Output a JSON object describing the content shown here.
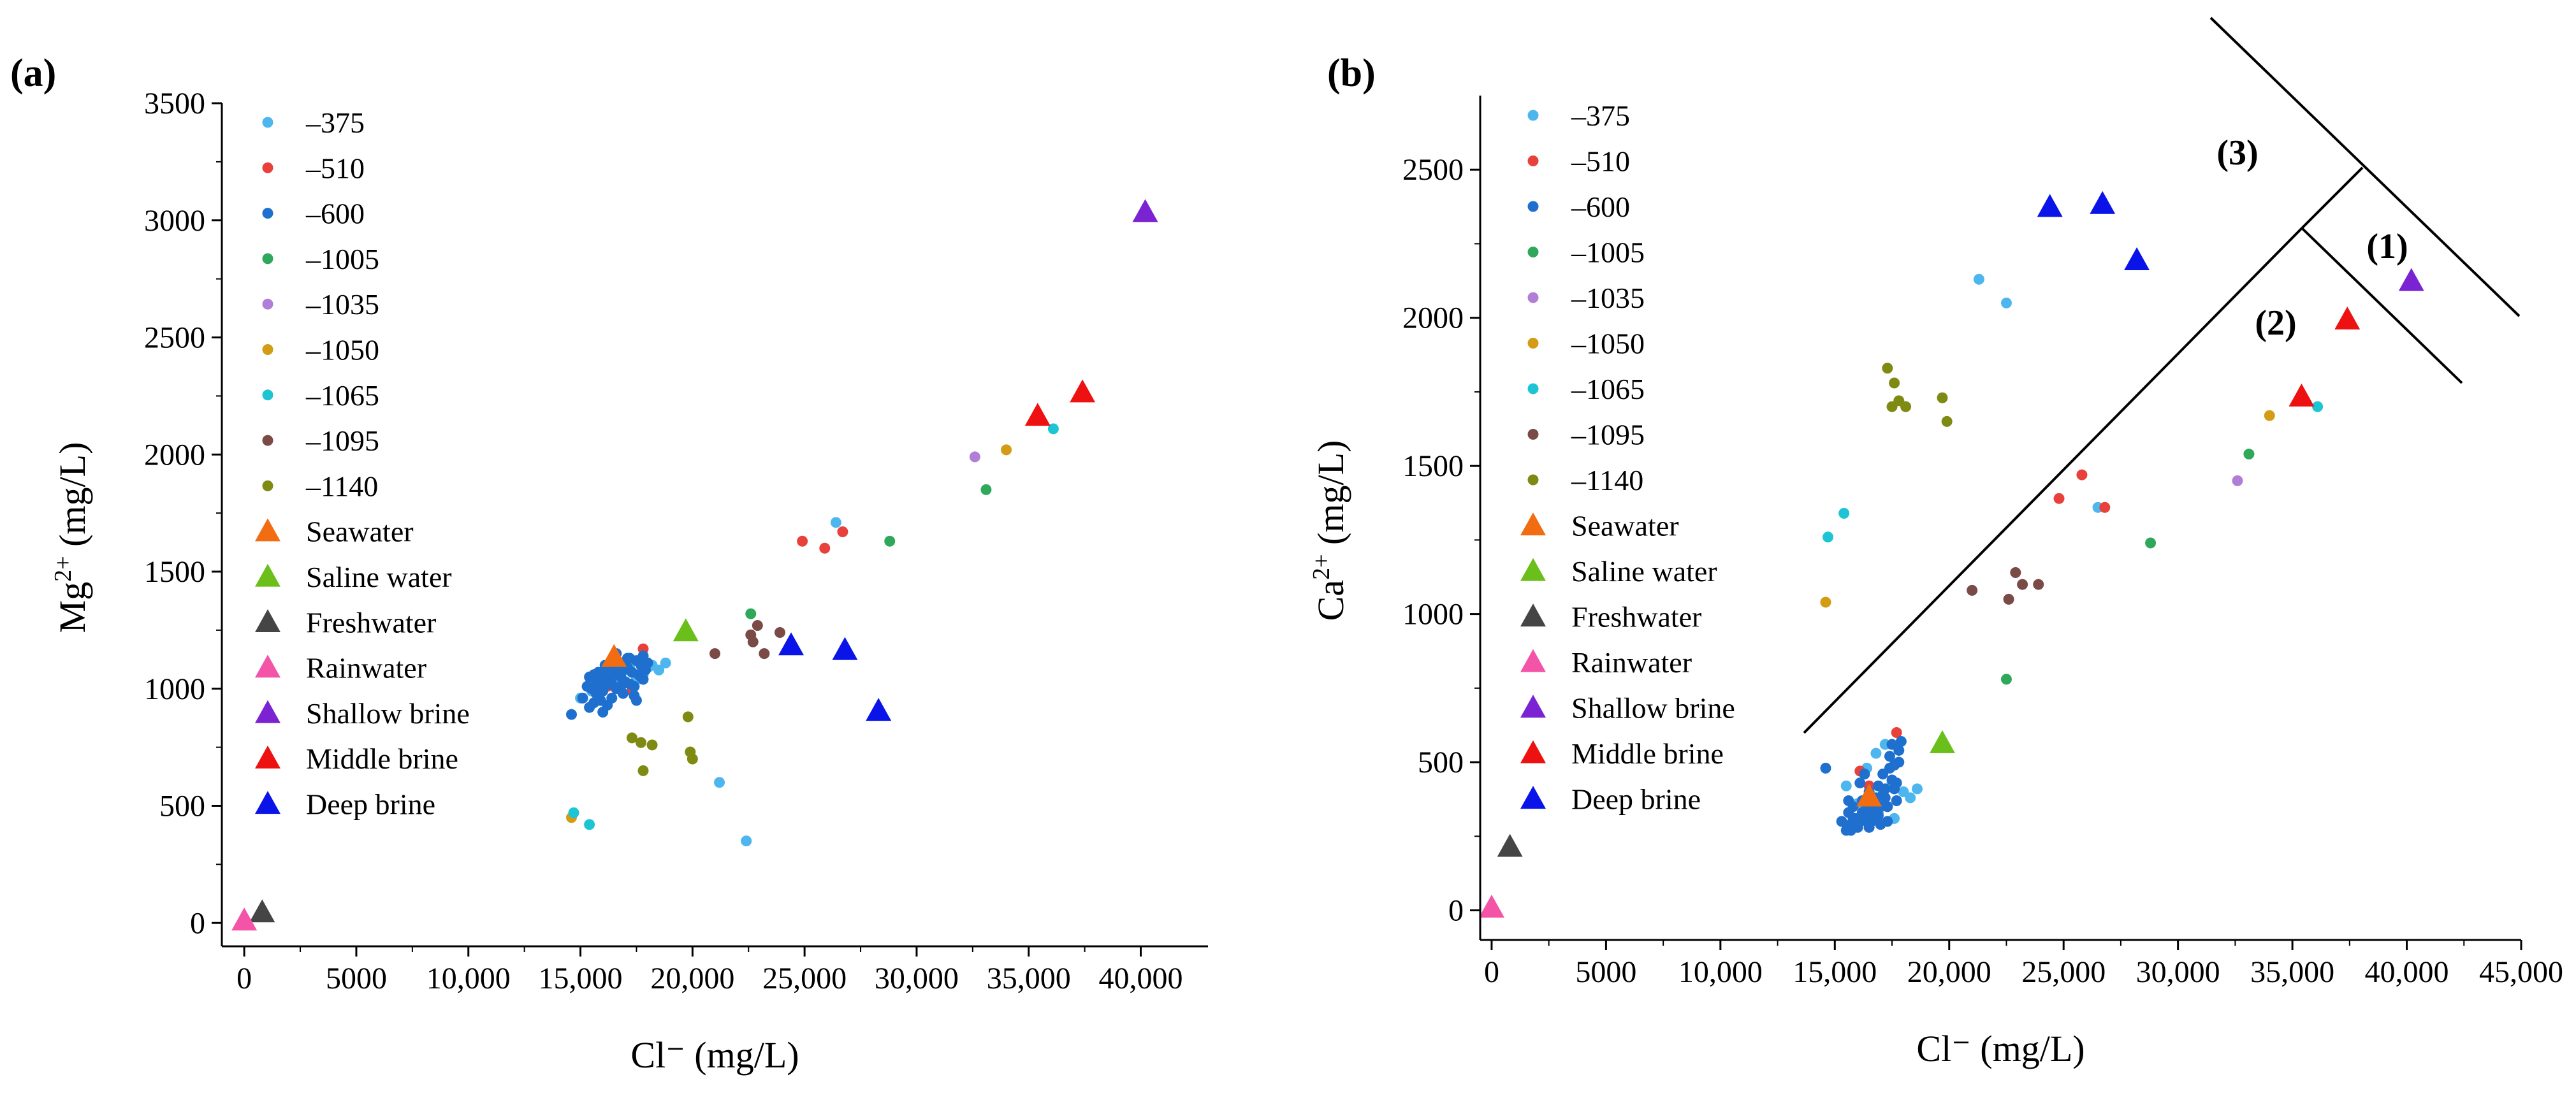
{
  "figure": {
    "panel_a_label": "(a)",
    "panel_b_label": "(b)"
  },
  "chart_data": [
    {
      "id": "a",
      "type": "scatter",
      "title": "",
      "xlabel": "Cl⁻ (mg/L)",
      "ylabel": "Mg²⁺ (mg/L)",
      "ylabel_base": "Mg",
      "ylabel_sup": "2+",
      "xlim": [
        -1000,
        43000
      ],
      "ylim": [
        -100,
        3500
      ],
      "xticks": [
        0,
        5000,
        10000,
        15000,
        20000,
        25000,
        30000,
        35000,
        40000
      ],
      "xtick_labels": [
        "0",
        "5000",
        "10,000",
        "15,000",
        "20,000",
        "25,000",
        "30,000",
        "35,000",
        "40,000"
      ],
      "yticks": [
        0,
        500,
        1000,
        1500,
        2000,
        2500,
        3000,
        3500
      ],
      "ytick_labels": [
        "0",
        "500",
        "1000",
        "1500",
        "2000",
        "2500",
        "3000",
        "3500"
      ],
      "legend_position": "top-left",
      "series": [
        {
          "name": "–375",
          "marker": "circle",
          "color": "#4db6ee",
          "x": [
            15000,
            15500,
            16000,
            16500,
            16800,
            17000,
            17200,
            17500,
            17800,
            18000,
            18200,
            18500,
            18800,
            21200,
            22400,
            26400
          ],
          "y": [
            960,
            990,
            1000,
            1020,
            1060,
            1080,
            1100,
            1040,
            1060,
            1090,
            1100,
            1080,
            1110,
            600,
            350,
            1710
          ]
        },
        {
          "name": "–510",
          "marker": "circle",
          "color": "#e8413c",
          "x": [
            16200,
            17300,
            17800,
            24900,
            25900,
            26700
          ],
          "y": [
            1010,
            990,
            1170,
            1630,
            1600,
            1670
          ]
        },
        {
          "name": "–600",
          "marker": "circle",
          "color": "#1e6fce",
          "x": [
            14600,
            15100,
            15300,
            15400,
            15500,
            15600,
            15700,
            15800,
            15900,
            16000,
            16100,
            16200,
            16300,
            16400,
            16500,
            16600,
            16700,
            16800,
            16900,
            17000,
            17100,
            17200,
            17300,
            17400,
            17500,
            17600,
            17700,
            17800,
            17900,
            18000,
            15400,
            15700,
            16000,
            16300,
            16600,
            16900,
            17200,
            17500,
            17800,
            15600,
            15900,
            16200,
            16500,
            16800,
            17100,
            17400,
            17700,
            15800,
            16100,
            16400
          ],
          "y": [
            890,
            960,
            1010,
            1050,
            1000,
            940,
            1020,
            1070,
            950,
            990,
            1040,
            1080,
            1020,
            960,
            1060,
            1000,
            1110,
            1050,
            980,
            1030,
            1090,
            1130,
            1070,
            1010,
            1120,
            1060,
            1100,
            1040,
            1080,
            1110,
            920,
            980,
            900,
            1030,
            1150,
            1080,
            1020,
            950,
            1140,
            1060,
            1000,
            930,
            1090,
            1010,
            1130,
            970,
            1050,
            1040,
            1100,
            1020
          ]
        },
        {
          "name": "–1005",
          "marker": "circle",
          "color": "#2fa85c",
          "x": [
            22600,
            28800,
            33100
          ],
          "y": [
            1320,
            1630,
            1850
          ]
        },
        {
          "name": "–1035",
          "marker": "circle",
          "color": "#b07ed6",
          "x": [
            32600
          ],
          "y": [
            1990
          ]
        },
        {
          "name": "–1050",
          "marker": "circle",
          "color": "#d39c14",
          "x": [
            14600,
            34000
          ],
          "y": [
            450,
            2020
          ]
        },
        {
          "name": "–1065",
          "marker": "circle",
          "color": "#1cc4d4",
          "x": [
            14700,
            15400,
            36100
          ],
          "y": [
            470,
            420,
            2110
          ]
        },
        {
          "name": "–1095",
          "marker": "circle",
          "color": "#7a4a46",
          "x": [
            21000,
            22600,
            22900,
            23200,
            23900,
            22700
          ],
          "y": [
            1150,
            1230,
            1270,
            1150,
            1240,
            1200
          ]
        },
        {
          "name": "–1140",
          "marker": "circle",
          "color": "#7e8a12",
          "x": [
            17300,
            17700,
            18200,
            17800,
            19800,
            19900,
            20000
          ],
          "y": [
            790,
            770,
            760,
            650,
            880,
            730,
            700
          ]
        },
        {
          "name": "Seawater",
          "marker": "triangle",
          "color": "#f26d12",
          "x": [
            16500
          ],
          "y": [
            1130
          ]
        },
        {
          "name": "Saline water",
          "marker": "triangle",
          "color": "#6bbf1a",
          "x": [
            19700
          ],
          "y": [
            1240
          ]
        },
        {
          "name": "Freshwater",
          "marker": "triangle",
          "color": "#454545",
          "x": [
            800
          ],
          "y": [
            40
          ]
        },
        {
          "name": "Rainwater",
          "marker": "triangle",
          "color": "#f454a8",
          "x": [
            0
          ],
          "y": [
            5
          ]
        },
        {
          "name": "Shallow brine",
          "marker": "triangle",
          "color": "#7b22d2",
          "x": [
            40200
          ],
          "y": [
            3030
          ]
        },
        {
          "name": "Middle brine",
          "marker": "triangle",
          "color": "#ee1111",
          "x": [
            35400,
            37400
          ],
          "y": [
            2160,
            2260
          ]
        },
        {
          "name": "Deep brine",
          "marker": "triangle",
          "color": "#0a14e8",
          "x": [
            24400,
            26800,
            28300
          ],
          "y": [
            1180,
            1160,
            900
          ]
        }
      ]
    },
    {
      "id": "b",
      "type": "scatter",
      "title": "",
      "xlabel": "Cl⁻ (mg/L)",
      "ylabel": "Ca²⁺ (mg/L)",
      "ylabel_base": "Ca",
      "ylabel_sup": "2+",
      "xlim": [
        -500,
        45000
      ],
      "ylim": [
        -100,
        2750
      ],
      "xticks": [
        0,
        5000,
        10000,
        15000,
        20000,
        25000,
        30000,
        35000,
        40000,
        45000
      ],
      "xtick_labels": [
        "0",
        "5000",
        "10,000",
        "15,000",
        "20,000",
        "25,000",
        "30,000",
        "35,000",
        "40,000",
        "45,000"
      ],
      "yticks": [
        0,
        500,
        1000,
        1500,
        2000,
        2500
      ],
      "ytick_labels": [
        "0",
        "500",
        "1000",
        "1500",
        "2000",
        "2500"
      ],
      "legend_position": "top-left",
      "zones": [
        "(1)",
        "(2)",
        "(3)"
      ],
      "series": [
        {
          "name": "–375",
          "marker": "circle",
          "color": "#4db6ee",
          "x": [
            15500,
            16000,
            16400,
            16800,
            17200,
            17500,
            18000,
            18300,
            18600,
            17600,
            16900,
            17300,
            21300,
            22500,
            26500
          ],
          "y": [
            420,
            360,
            480,
            530,
            560,
            430,
            400,
            380,
            410,
            310,
            330,
            350,
            2130,
            2050,
            1360
          ]
        },
        {
          "name": "–510",
          "marker": "circle",
          "color": "#e8413c",
          "x": [
            16100,
            16500,
            17700,
            24800,
            25800,
            26800
          ],
          "y": [
            470,
            420,
            600,
            1390,
            1470,
            1360
          ]
        },
        {
          "name": "–600",
          "marker": "circle",
          "color": "#1e6fce",
          "x": [
            14600,
            15300,
            15500,
            15600,
            15700,
            15800,
            15900,
            16000,
            16100,
            16200,
            16300,
            16400,
            16500,
            16600,
            16700,
            16800,
            16900,
            17000,
            17100,
            17200,
            17300,
            17400,
            17500,
            17600,
            17700,
            17800,
            17900,
            15600,
            15900,
            16200,
            16500,
            16800,
            17100,
            17400,
            17700,
            15800,
            16100,
            16400,
            16700,
            17000,
            17300,
            17600,
            15700,
            16000,
            16300,
            16600,
            16900,
            17200,
            17500,
            17800
          ],
          "y": [
            480,
            300,
            270,
            330,
            290,
            350,
            310,
            280,
            430,
            370,
            460,
            300,
            400,
            340,
            320,
            380,
            420,
            350,
            460,
            410,
            300,
            520,
            560,
            490,
            370,
            540,
            570,
            370,
            300,
            330,
            280,
            360,
            390,
            480,
            430,
            310,
            300,
            350,
            320,
            290,
            350,
            410,
            270,
            290,
            330,
            300,
            320,
            380,
            440,
            500
          ]
        },
        {
          "name": "–1005",
          "marker": "circle",
          "color": "#2fa85c",
          "x": [
            22500,
            28800,
            33100
          ],
          "y": [
            780,
            1240,
            1540
          ]
        },
        {
          "name": "–1035",
          "marker": "circle",
          "color": "#b07ed6",
          "x": [
            32600
          ],
          "y": [
            1450
          ]
        },
        {
          "name": "–1050",
          "marker": "circle",
          "color": "#d39c14",
          "x": [
            14600,
            34000
          ],
          "y": [
            1040,
            1670
          ]
        },
        {
          "name": "–1065",
          "marker": "circle",
          "color": "#1cc4d4",
          "x": [
            14700,
            15400,
            36100
          ],
          "y": [
            1260,
            1340,
            1700
          ]
        },
        {
          "name": "–1095",
          "marker": "circle",
          "color": "#7a4a46",
          "x": [
            21000,
            22600,
            22900,
            23200,
            23900
          ],
          "y": [
            1080,
            1050,
            1140,
            1100,
            1100
          ]
        },
        {
          "name": "–1140",
          "marker": "circle",
          "color": "#7e8a12",
          "x": [
            17300,
            17600,
            17800,
            18100,
            17500,
            19700,
            19900
          ],
          "y": [
            1830,
            1780,
            1720,
            1700,
            1700,
            1730,
            1650
          ]
        },
        {
          "name": "Seawater",
          "marker": "triangle",
          "color": "#f26d12",
          "x": [
            16500
          ],
          "y": [
            380
          ]
        },
        {
          "name": "Saline water",
          "marker": "triangle",
          "color": "#6bbf1a",
          "x": [
            19700
          ],
          "y": [
            560
          ]
        },
        {
          "name": "Freshwater",
          "marker": "triangle",
          "color": "#454545",
          "x": [
            800
          ],
          "y": [
            210
          ]
        },
        {
          "name": "Rainwater",
          "marker": "triangle",
          "color": "#f454a8",
          "x": [
            0
          ],
          "y": [
            5
          ]
        },
        {
          "name": "Shallow brine",
          "marker": "triangle",
          "color": "#7b22d2",
          "x": [
            40200
          ],
          "y": [
            2120
          ]
        },
        {
          "name": "Middle brine",
          "marker": "triangle",
          "color": "#ee1111",
          "x": [
            35400,
            37400
          ],
          "y": [
            1730,
            1990
          ]
        },
        {
          "name": "Deep brine",
          "marker": "triangle",
          "color": "#0a14e8",
          "x": [
            24400,
            26700,
            28200
          ],
          "y": [
            2370,
            2380,
            2190
          ]
        }
      ]
    }
  ]
}
